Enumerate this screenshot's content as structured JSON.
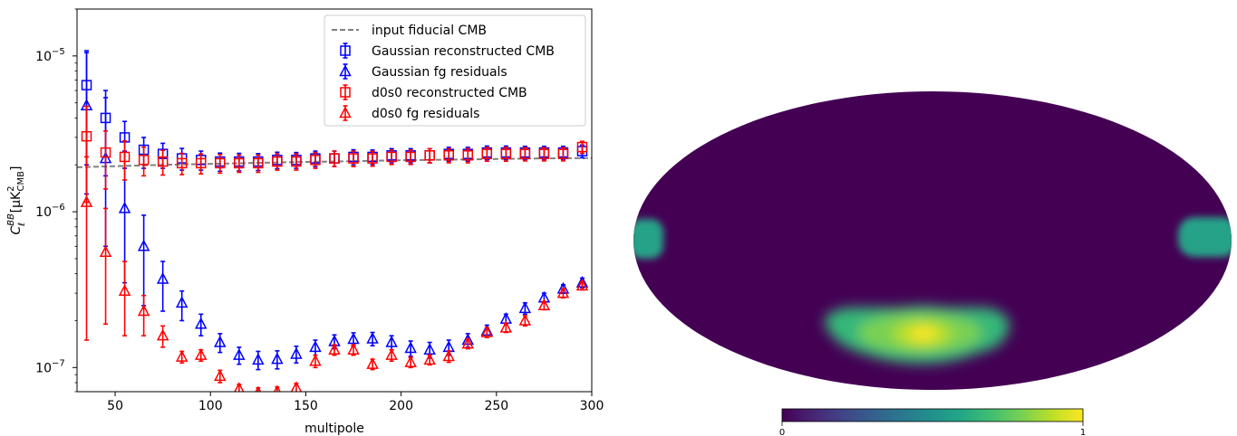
{
  "chart_data": [
    {
      "type": "scatter",
      "xlabel": "multipole",
      "ylabel": "C_ℓ^{BB} [μK²_CMB]",
      "ylabel_parts": {
        "base": "C",
        "sup": "BB",
        "sub": "ℓ",
        "unit_open": "[μK",
        "unit_sup": "2",
        "unit_sub": "CMB",
        "unit_close": "]"
      },
      "xlim": [
        30,
        300
      ],
      "ylim": [
        7e-08,
        2e-05
      ],
      "yscale": "log",
      "x_ticks": [
        50,
        100,
        150,
        200,
        250,
        300
      ],
      "y_ticks": [
        {
          "value": 1e-07,
          "mant": "10",
          "exp": "−7"
        },
        {
          "value": 1e-06,
          "mant": "10",
          "exp": "−6"
        },
        {
          "value": 1e-05,
          "mant": "10",
          "exp": "−5"
        }
      ],
      "legend_position": "top-right",
      "x": [
        35,
        45,
        55,
        65,
        75,
        85,
        95,
        105,
        115,
        125,
        135,
        145,
        155,
        165,
        175,
        185,
        195,
        205,
        215,
        225,
        235,
        245,
        255,
        265,
        275,
        285,
        295
      ],
      "fiducial": {
        "name": "input fiducial CMB",
        "color": "#808080",
        "x": [
          30,
          50,
          75,
          100,
          125,
          150,
          175,
          200,
          225,
          250,
          275,
          300
        ],
        "y": [
          1.93e-06,
          1.96e-06,
          2e-06,
          2.03e-06,
          2.06e-06,
          2.09e-06,
          2.11e-06,
          2.14e-06,
          2.16e-06,
          2.18e-06,
          2.2e-06,
          2.21e-06
        ]
      },
      "series": [
        {
          "name": "Gaussian reconstructed CMB",
          "marker": "square",
          "color": "#0000ff",
          "x_offset": 0,
          "y": [
            6.5e-06,
            4e-06,
            3e-06,
            2.5e-06,
            2.35e-06,
            2.2e-06,
            2.15e-06,
            2.1e-06,
            2.1e-06,
            2.1e-06,
            2.15e-06,
            2.15e-06,
            2.2e-06,
            2.2e-06,
            2.25e-06,
            2.25e-06,
            2.3e-06,
            2.3e-06,
            2.3e-06,
            2.35e-06,
            2.35e-06,
            2.4e-06,
            2.4e-06,
            2.4e-06,
            2.4e-06,
            2.4e-06,
            2.45e-06
          ],
          "yerr_lo": [
            4.5e-06,
            2.3e-06,
            1.1e-06,
            6e-07,
            4.5e-07,
            3.5e-07,
            3e-07,
            2.8e-07,
            2.7e-07,
            2.6e-07,
            2.6e-07,
            2.5e-07,
            2.5e-07,
            2.5e-07,
            2.5e-07,
            2.4e-07,
            2.4e-07,
            2.4e-07,
            2.4e-07,
            2.4e-07,
            2.4e-07,
            2.4e-07,
            2.4e-07,
            2.3e-07,
            2.3e-07,
            2.3e-07,
            2.3e-07
          ],
          "yerr_hi": [
            4e-06,
            2e-06,
            8e-07,
            5e-07,
            4e-07,
            3.5e-07,
            3e-07,
            2.8e-07,
            2.7e-07,
            2.6e-07,
            2.6e-07,
            2.5e-07,
            2.5e-07,
            2.5e-07,
            2.5e-07,
            2.4e-07,
            2.4e-07,
            2.4e-07,
            2.4e-07,
            2.4e-07,
            2.4e-07,
            2.4e-07,
            2.4e-07,
            2.3e-07,
            2.3e-07,
            2.3e-07,
            2.3e-07
          ]
        },
        {
          "name": "Gaussian fg residuals",
          "marker": "triangle",
          "color": "#0000ff",
          "x_offset": 0,
          "y": [
            4.8e-06,
            2.2e-06,
            1.05e-06,
            6e-07,
            3.7e-07,
            2.6e-07,
            1.9e-07,
            1.45e-07,
            1.2e-07,
            1.12e-07,
            1.13e-07,
            1.22e-07,
            1.35e-07,
            1.47e-07,
            1.52e-07,
            1.53e-07,
            1.45e-07,
            1.33e-07,
            1.3e-07,
            1.35e-07,
            1.5e-07,
            1.72e-07,
            2.05e-07,
            2.4e-07,
            2.8e-07,
            3.2e-07,
            3.5e-07
          ],
          "yerr_lo": [
            3.5e-06,
            1.6e-06,
            7e-07,
            3.5e-07,
            1.4e-07,
            6e-08,
            3e-08,
            2e-08,
            1.5e-08,
            1.5e-08,
            1.5e-08,
            1.5e-08,
            1.5e-08,
            1.5e-08,
            1.5e-08,
            1.5e-08,
            1.5e-08,
            1.5e-08,
            1.5e-08,
            1.5e-08,
            1.5e-08,
            1.5e-08,
            1.5e-08,
            2e-08,
            2e-08,
            2e-08,
            2.5e-08
          ],
          "yerr_hi": [
            6e-06,
            3.2e-06,
            1.4e-06,
            3.5e-07,
            1.1e-07,
            5e-08,
            3e-08,
            2e-08,
            1.5e-08,
            1.5e-08,
            1.5e-08,
            1.5e-08,
            1.5e-08,
            1.5e-08,
            1.5e-08,
            1.5e-08,
            1.5e-08,
            1.5e-08,
            1.5e-08,
            1.5e-08,
            1.5e-08,
            1.5e-08,
            1.5e-08,
            2e-08,
            2e-08,
            2e-08,
            2.5e-08
          ]
        },
        {
          "name": "d0s0 reconstructed CMB",
          "marker": "square",
          "color": "#ff0000",
          "x_offset": 0,
          "y": [
            3.05e-06,
            2.4e-06,
            2.25e-06,
            2.15e-06,
            2.1e-06,
            2.05e-06,
            2.05e-06,
            2.05e-06,
            2.05e-06,
            2.05e-06,
            2.1e-06,
            2.1e-06,
            2.15e-06,
            2.2e-06,
            2.2e-06,
            2.2e-06,
            2.25e-06,
            2.25e-06,
            2.3e-06,
            2.3e-06,
            2.3e-06,
            2.35e-06,
            2.35e-06,
            2.35e-06,
            2.35e-06,
            2.35e-06,
            2.6e-06
          ],
          "yerr_lo": [
            1.9e-06,
            1e-06,
            6.5e-07,
            4.5e-07,
            3.8e-07,
            3.2e-07,
            3e-07,
            2.8e-07,
            2.6e-07,
            2.6e-07,
            2.5e-07,
            2.5e-07,
            2.5e-07,
            2.5e-07,
            2.5e-07,
            2.4e-07,
            2.4e-07,
            2.4e-07,
            2.4e-07,
            2.4e-07,
            2.4e-07,
            2.4e-07,
            2.4e-07,
            2.3e-07,
            2.3e-07,
            2.3e-07,
            2.3e-07
          ],
          "yerr_hi": [
            1.7e-06,
            9e-07,
            6e-07,
            4.5e-07,
            3.8e-07,
            3.2e-07,
            3e-07,
            2.8e-07,
            2.6e-07,
            2.6e-07,
            2.5e-07,
            2.5e-07,
            2.5e-07,
            2.5e-07,
            2.5e-07,
            2.4e-07,
            2.4e-07,
            2.4e-07,
            2.4e-07,
            2.4e-07,
            2.4e-07,
            2.4e-07,
            2.4e-07,
            2.3e-07,
            2.3e-07,
            2.3e-07,
            2.3e-07
          ]
        },
        {
          "name": "d0s0 fg residuals",
          "marker": "triangle",
          "color": "#ff0000",
          "x_offset": 0,
          "y": [
            1.15e-06,
            5.5e-07,
            3.1e-07,
            2.3e-07,
            1.6e-07,
            1.17e-07,
            1.2e-07,
            8.8e-08,
            7.3e-08,
            6.9e-08,
            7e-08,
            7.4e-08,
            1.1e-07,
            1.3e-07,
            1.3e-07,
            1.05e-07,
            1.2e-07,
            1.08e-07,
            1.12e-07,
            1.18e-07,
            1.42e-07,
            1.68e-07,
            1.8e-07,
            2e-07,
            2.5e-07,
            3e-07,
            3.35e-07
          ],
          "yerr_lo": [
            1e-06,
            3.6e-07,
            1.5e-07,
            7e-08,
            2.5e-08,
            1e-08,
            1e-08,
            8e-09,
            5e-09,
            5e-09,
            5e-09,
            5e-09,
            1e-08,
            1e-08,
            1e-08,
            8e-09,
            1e-08,
            8e-09,
            8e-09,
            1e-08,
            1e-08,
            1.2e-08,
            1.2e-08,
            1.5e-08,
            1.5e-08,
            2e-08,
            2e-08
          ],
          "yerr_hi": [
            1.1e-06,
            5e-07,
            1.7e-07,
            6e-08,
            2.5e-08,
            1e-08,
            1e-08,
            8e-09,
            5e-09,
            5e-09,
            5e-09,
            5e-09,
            1e-08,
            1e-08,
            1e-08,
            8e-09,
            1e-08,
            8e-09,
            8e-09,
            1e-08,
            1e-08,
            1.2e-08,
            1.2e-08,
            1.5e-08,
            1.5e-08,
            2e-08,
            2e-08
          ]
        }
      ]
    },
    {
      "type": "heatmap",
      "projection": "mollweide",
      "colormap": "viridis",
      "colorbar": {
        "min": "0",
        "max": "1"
      },
      "hotspots": [
        {
          "region": "bottom-center",
          "peak_value": 1.0
        },
        {
          "region": "left-edge-equator",
          "peak_value": 0.55
        },
        {
          "region": "right-edge-equator",
          "peak_value": 0.55
        }
      ]
    }
  ]
}
